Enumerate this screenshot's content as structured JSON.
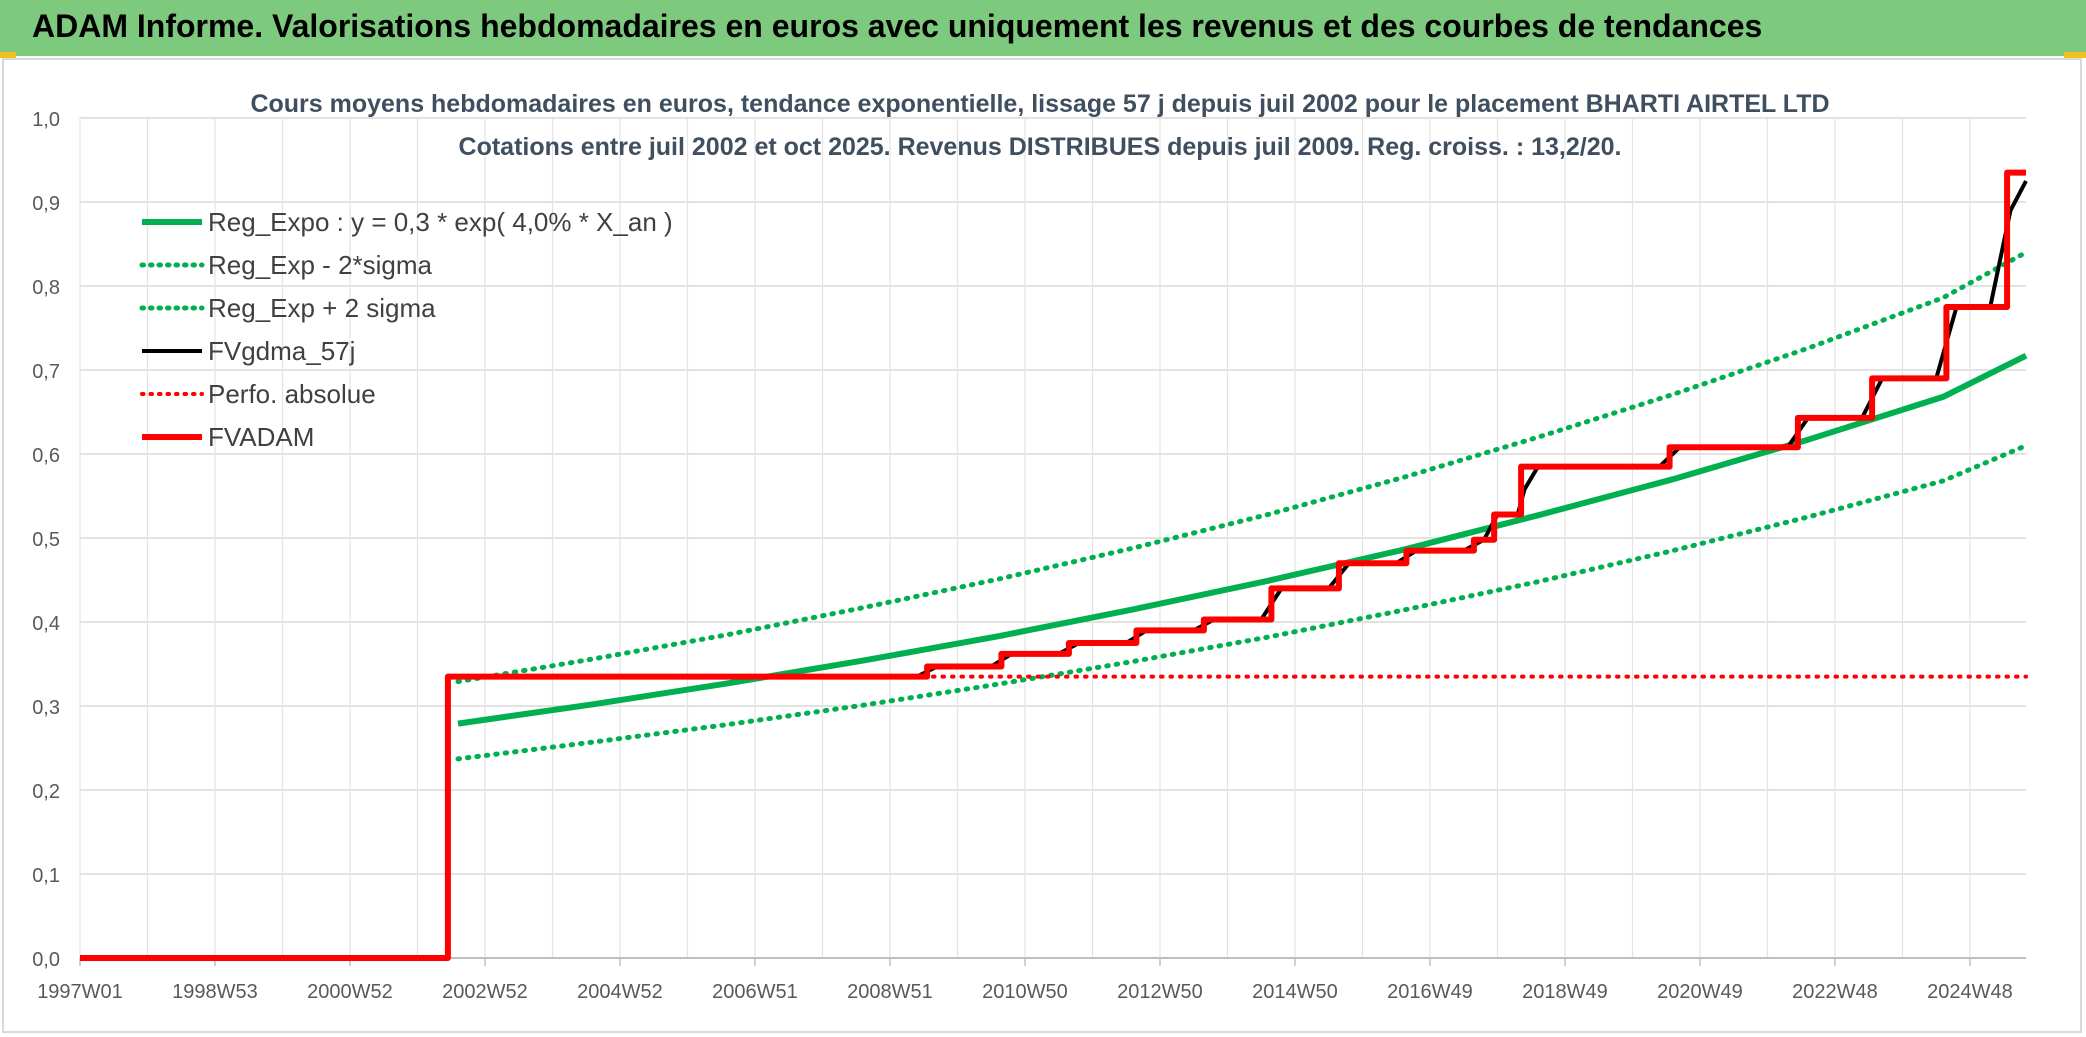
{
  "header": {
    "title": "ADAM Informe. Valorisations hebdomadaires en euros avec uniquement les revenus et des courbes de tendances"
  },
  "chart_data": {
    "type": "line",
    "title": "Cours moyens hebdomadaires en euros, tendance exponentielle, lissage 57 j depuis juil 2002 pour le placement BHARTI AIRTEL LTD",
    "subtitle": "Cotations entre juil 2002 et oct 2025. Revenus DISTRIBUES depuis juil 2009. Reg. croiss. : 13,2/20.",
    "xlabel": "",
    "ylabel": "",
    "xlim": [
      1997.0,
      2025.83
    ],
    "ylim": [
      0,
      1.0
    ],
    "yticks": [
      "0,0",
      "0,1",
      "0,2",
      "0,3",
      "0,4",
      "0,5",
      "0,6",
      "0,7",
      "0,8",
      "0,9",
      "1,0"
    ],
    "xticks": [
      {
        "label": "1997W01",
        "x": 1997.0
      },
      {
        "label": "1998W53",
        "x": 1999.0
      },
      {
        "label": "2000W52",
        "x": 2001.0
      },
      {
        "label": "2002W52",
        "x": 2003.0
      },
      {
        "label": "2004W52",
        "x": 2005.0
      },
      {
        "label": "2006W51",
        "x": 2007.0
      },
      {
        "label": "2008W51",
        "x": 2009.0
      },
      {
        "label": "2010W50",
        "x": 2011.0
      },
      {
        "label": "2012W50",
        "x": 2013.0
      },
      {
        "label": "2014W50",
        "x": 2015.0
      },
      {
        "label": "2016W49",
        "x": 2017.0
      },
      {
        "label": "2018W49",
        "x": 2019.0
      },
      {
        "label": "2020W49",
        "x": 2021.0
      },
      {
        "label": "2022W48",
        "x": 2023.0
      },
      {
        "label": "2024W48",
        "x": 2025.0
      }
    ],
    "grid": true,
    "legend_position": "top-left",
    "series": [
      {
        "name": "Reg_Expo : y = 0,3 * exp( 4,0% *  X_an )",
        "color": "#00b050",
        "style": "solid",
        "width": 6,
        "x": [
          2002.6,
          2004.6,
          2006.6,
          2008.6,
          2010.6,
          2012.6,
          2014.6,
          2016.6,
          2018.6,
          2020.6,
          2022.6,
          2024.6,
          2025.83
        ],
        "y": [
          0.279,
          0.302,
          0.327,
          0.354,
          0.383,
          0.415,
          0.449,
          0.486,
          0.527,
          0.57,
          0.617,
          0.668,
          0.717
        ]
      },
      {
        "name": "Reg_Exp - 2*sigma",
        "color": "#00b050",
        "style": "dotted",
        "width": 5,
        "x": [
          2002.6,
          2004.6,
          2006.6,
          2008.6,
          2010.6,
          2012.6,
          2014.6,
          2016.6,
          2018.6,
          2020.6,
          2022.6,
          2024.6,
          2025.83
        ],
        "y": [
          0.237,
          0.257,
          0.278,
          0.301,
          0.326,
          0.353,
          0.382,
          0.414,
          0.448,
          0.485,
          0.525,
          0.568,
          0.61
        ]
      },
      {
        "name": "Reg_Exp + 2 sigma",
        "color": "#00b050",
        "style": "dotted",
        "width": 5,
        "x": [
          2002.6,
          2004.6,
          2006.6,
          2008.6,
          2010.6,
          2012.6,
          2014.6,
          2016.6,
          2018.6,
          2020.6,
          2022.6,
          2024.6,
          2025.83
        ],
        "y": [
          0.329,
          0.356,
          0.385,
          0.417,
          0.451,
          0.488,
          0.528,
          0.572,
          0.62,
          0.671,
          0.726,
          0.786,
          0.84
        ]
      },
      {
        "name": "FVgdma_57j",
        "color": "#000000",
        "style": "solid",
        "width": 4,
        "x": [
          2002.6,
          2009.4,
          2009.7,
          2010.5,
          2010.8,
          2011.5,
          2011.8,
          2012.5,
          2012.8,
          2013.5,
          2013.8,
          2014.5,
          2014.8,
          2015.5,
          2015.8,
          2016.5,
          2016.8,
          2017.5,
          2017.8,
          2018.0,
          2018.3,
          2018.4,
          2018.6,
          2020.4,
          2020.7,
          2022.3,
          2022.6,
          2023.4,
          2023.7,
          2024.5,
          2024.8,
          2025.3,
          2025.6,
          2025.83
        ],
        "y": [
          0.335,
          0.335,
          0.347,
          0.347,
          0.362,
          0.362,
          0.375,
          0.375,
          0.39,
          0.39,
          0.403,
          0.403,
          0.44,
          0.44,
          0.47,
          0.47,
          0.485,
          0.485,
          0.498,
          0.528,
          0.528,
          0.558,
          0.585,
          0.585,
          0.608,
          0.608,
          0.643,
          0.643,
          0.69,
          0.69,
          0.775,
          0.775,
          0.89,
          0.925
        ]
      },
      {
        "name": "Perfo. absolue",
        "color": "#ff0000",
        "style": "dotted",
        "width": 4,
        "x": [
          2002.6,
          2025.83
        ],
        "y": [
          0.335,
          0.335
        ]
      },
      {
        "name": "FVADAM",
        "color": "#ff0000",
        "style": "solid",
        "width": 6,
        "step": true,
        "x": [
          1997.0,
          2002.45,
          2002.45,
          2009.55,
          2009.55,
          2010.65,
          2010.65,
          2011.65,
          2011.65,
          2012.65,
          2012.65,
          2013.65,
          2013.65,
          2014.65,
          2014.65,
          2015.65,
          2015.65,
          2016.65,
          2016.65,
          2017.65,
          2017.65,
          2017.95,
          2017.95,
          2018.35,
          2018.35,
          2020.55,
          2020.55,
          2022.45,
          2022.45,
          2023.55,
          2023.55,
          2024.65,
          2024.65,
          2025.55,
          2025.55,
          2025.83
        ],
        "y": [
          0.0,
          0.0,
          0.335,
          0.335,
          0.347,
          0.347,
          0.362,
          0.362,
          0.375,
          0.375,
          0.39,
          0.39,
          0.403,
          0.403,
          0.44,
          0.44,
          0.47,
          0.47,
          0.485,
          0.485,
          0.498,
          0.498,
          0.528,
          0.528,
          0.585,
          0.585,
          0.608,
          0.608,
          0.643,
          0.643,
          0.69,
          0.69,
          0.775,
          0.775,
          0.935,
          0.935
        ]
      }
    ]
  }
}
